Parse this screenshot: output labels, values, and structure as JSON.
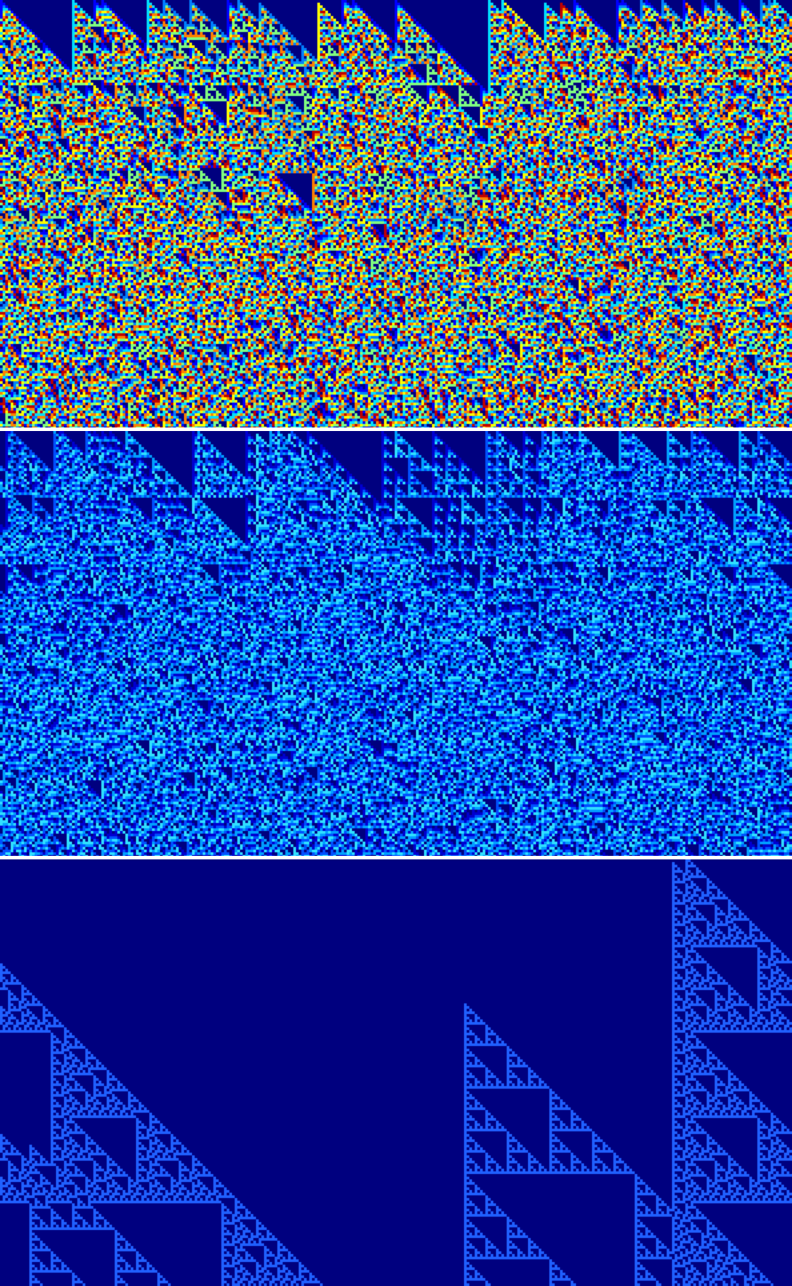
{
  "panels": [
    {
      "id": "top",
      "description_name": "colorful-fractal-panel",
      "palette": [
        "#00007f",
        "#0000ff",
        "#0080ff",
        "#00e0ff",
        "#80ff80",
        "#ffff00",
        "#ff8000",
        "#c00000"
      ],
      "seed": 7
    },
    {
      "id": "middle",
      "description_name": "blue-cyan-fractal-panel",
      "palette": [
        "#00007f",
        "#0000d0",
        "#0050ff",
        "#00a0ff",
        "#30e0ff"
      ],
      "seed": 13
    },
    {
      "id": "bottom",
      "description_name": "sierpinski-triangle-panel",
      "palette": [
        "#00007f",
        "#2060ff"
      ],
      "seed": 29
    }
  ],
  "separator_color": "#ffffff"
}
